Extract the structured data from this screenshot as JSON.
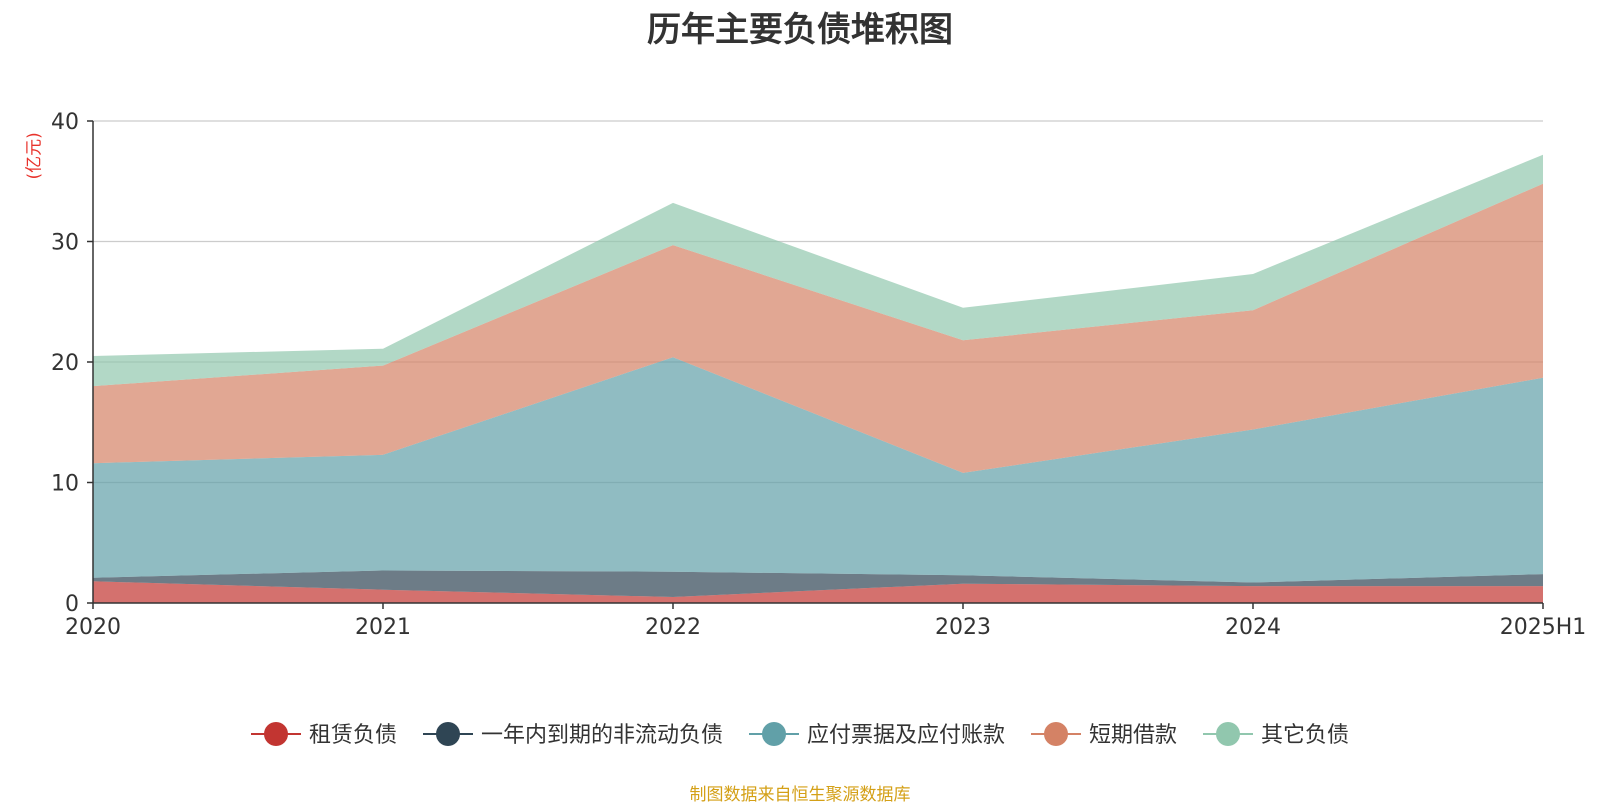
{
  "chart_data": {
    "type": "area",
    "stacked": true,
    "title": "历年主要负债堆积图",
    "y_unit": "(亿元)",
    "categories": [
      "2020",
      "2021",
      "2022",
      "2023",
      "2024",
      "2025H1"
    ],
    "ylim": [
      0,
      40
    ],
    "yticks": [
      0,
      10,
      20,
      30,
      40
    ],
    "grid": true,
    "legend_position": "bottom",
    "series": [
      {
        "name": "租赁负债",
        "color": "#c23531",
        "values": [
          1.8,
          1.1,
          0.5,
          1.6,
          1.4,
          1.4
        ]
      },
      {
        "name": "一年内到期的非流动负债",
        "color": "#2f4554",
        "values": [
          0.3,
          1.6,
          2.1,
          0.7,
          0.3,
          1.0
        ]
      },
      {
        "name": "应付票据及应付账款",
        "color": "#61a0a8",
        "values": [
          9.5,
          9.6,
          17.8,
          8.5,
          12.7,
          16.3
        ]
      },
      {
        "name": "短期借款",
        "color": "#d48265",
        "values": [
          6.4,
          7.4,
          9.3,
          11.0,
          9.9,
          16.1
        ]
      },
      {
        "name": "其它负债",
        "color": "#91c7ae",
        "values": [
          2.5,
          1.4,
          3.5,
          2.7,
          3.0,
          2.4
        ]
      }
    ]
  },
  "footer": {
    "source": "制图数据来自恒生聚源数据库"
  }
}
